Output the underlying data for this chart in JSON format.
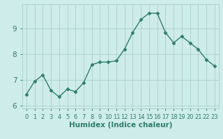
{
  "x": [
    0,
    1,
    2,
    3,
    4,
    5,
    6,
    7,
    8,
    9,
    10,
    11,
    12,
    13,
    14,
    15,
    16,
    17,
    18,
    19,
    20,
    21,
    22,
    23
  ],
  "y": [
    6.45,
    6.95,
    7.2,
    6.6,
    6.35,
    6.65,
    6.55,
    6.9,
    7.6,
    7.7,
    7.7,
    7.75,
    8.2,
    8.85,
    9.35,
    9.6,
    9.6,
    8.85,
    8.45,
    8.7,
    8.45,
    8.2,
    7.8,
    7.55
  ],
  "line_color": "#2e7d6e",
  "marker": "D",
  "markersize": 2.5,
  "linewidth": 1.0,
  "bg_color": "#ceecea",
  "grid_color": "#aed4d0",
  "xlabel": "Humidex (Indice chaleur)",
  "xlabel_fontsize": 7.5,
  "ylabel_ticks": [
    6,
    7,
    8,
    9
  ],
  "xtick_labels": [
    "0",
    "1",
    "2",
    "3",
    "4",
    "5",
    "6",
    "7",
    "8",
    "9",
    "10",
    "11",
    "12",
    "13",
    "14",
    "15",
    "16",
    "17",
    "18",
    "19",
    "20",
    "21",
    "22",
    "23"
  ],
  "xlim": [
    -0.5,
    23.5
  ],
  "ylim": [
    5.9,
    9.95
  ],
  "ytick_fontsize": 7.5,
  "xtick_fontsize": 6.0
}
